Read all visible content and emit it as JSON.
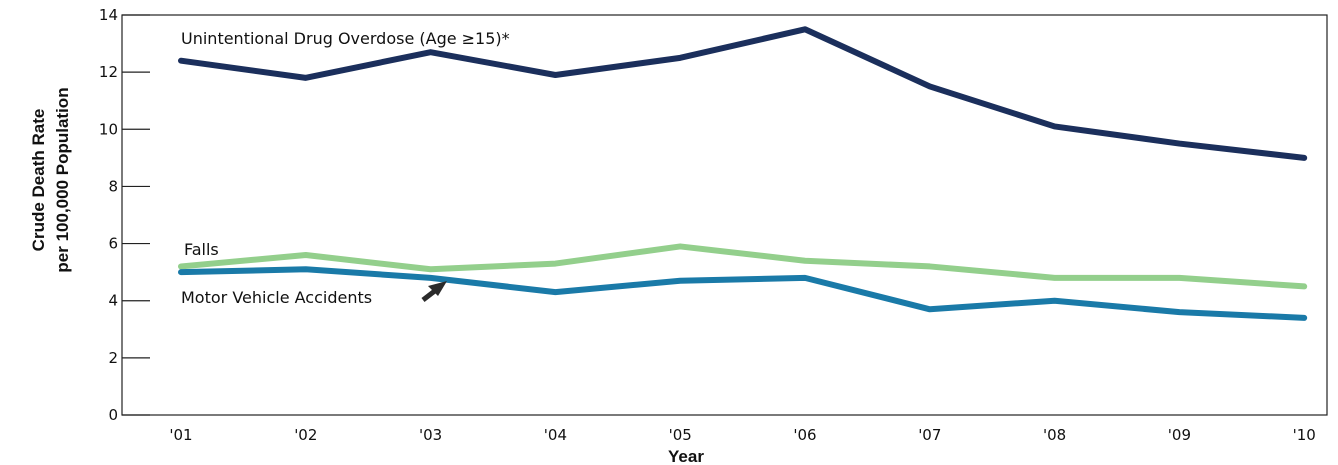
{
  "chart_data": {
    "type": "line",
    "xlabel": "Year",
    "ylabel": [
      "Crude Death Rate",
      "per 100,000 Population"
    ],
    "categories": [
      "'01",
      "'02",
      "'03",
      "'04",
      "'05",
      "'06",
      "'07",
      "'08",
      "'09",
      "'10"
    ],
    "ylim": [
      0,
      14
    ],
    "yticks": [
      0,
      2,
      4,
      6,
      8,
      10,
      12,
      14
    ],
    "grid": false,
    "legend": "none",
    "series": [
      {
        "name": "Unintentional Drug Overdose (Age ≥15)*",
        "color": "#1b2f5c",
        "values": [
          12.4,
          11.8,
          12.7,
          11.9,
          12.5,
          13.5,
          11.5,
          10.1,
          9.5,
          9.0
        ]
      },
      {
        "name": "Falls",
        "color": "#93cf8c",
        "values": [
          5.2,
          5.6,
          5.1,
          5.3,
          5.9,
          5.4,
          5.2,
          4.8,
          4.8,
          4.5
        ]
      },
      {
        "name": "Motor Vehicle Accidents",
        "color": "#1a7aa8",
        "values": [
          5.0,
          5.1,
          4.8,
          4.3,
          4.7,
          4.8,
          3.7,
          4.0,
          3.6,
          3.4
        ]
      }
    ],
    "arrow_color": "#2b2b2b"
  }
}
